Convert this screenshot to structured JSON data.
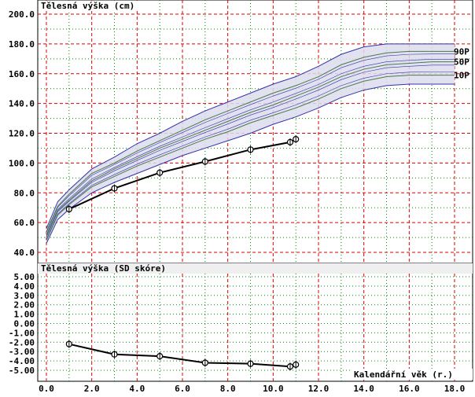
{
  "chart_data": [
    {
      "type": "line",
      "title": "Tělesná výška (cm)",
      "ylim": [
        40,
        200
      ],
      "xlim": [
        0,
        18
      ],
      "y_ticks": [
        "40.0",
        "60.0",
        "80.0",
        "100.0",
        "120.0",
        "140.0",
        "160.0",
        "180.0",
        "200.0"
      ],
      "x_ticks": [
        "0.0",
        "2.0",
        "4.0",
        "6.0",
        "8.0",
        "10.0",
        "12.0",
        "14.0",
        "16.0",
        "18.0"
      ],
      "grid": true,
      "percentile_labels": [
        "90P",
        "50P",
        "10P"
      ],
      "reference_band": {
        "x": [
          0,
          0.5,
          1,
          2,
          3,
          4,
          5,
          6,
          7,
          8,
          9,
          10,
          11,
          12,
          13,
          14,
          15,
          16,
          17,
          18
        ],
        "upper": [
          56,
          74,
          82,
          96,
          104,
          113,
          120,
          128,
          135,
          141,
          147,
          153,
          158,
          165,
          173,
          178,
          180,
          180,
          180,
          180
        ],
        "p90": [
          54,
          71,
          79,
          93,
          100,
          108,
          115,
          122,
          129,
          135,
          141,
          147,
          152,
          158,
          166,
          171,
          174,
          175,
          175,
          175
        ],
        "p50": [
          51,
          68,
          75,
          88,
          96,
          103,
          110,
          116,
          122,
          128,
          134,
          139,
          145,
          151,
          158,
          163,
          166,
          167,
          168,
          168
        ],
        "p10": [
          48,
          65,
          72,
          84,
          91,
          98,
          104,
          110,
          116,
          121,
          127,
          132,
          137,
          143,
          150,
          155,
          158,
          159,
          159,
          159
        ],
        "lower": [
          46,
          62,
          69,
          80,
          87,
          93,
          99,
          105,
          110,
          115,
          120,
          126,
          131,
          137,
          144,
          149,
          152,
          153,
          153,
          153
        ]
      },
      "series": [
        {
          "x": [
            1,
            3,
            5,
            7,
            9,
            10.75,
            11
          ],
          "values": [
            69,
            83,
            93.5,
            101,
            109,
            114,
            116
          ]
        }
      ]
    },
    {
      "type": "line",
      "title": "Tělesná výška (SD skóre)",
      "ylim": [
        -5,
        5
      ],
      "xlim": [
        0,
        18
      ],
      "y_ticks": [
        "5.00",
        "4.00",
        "3.00",
        "2.00",
        "1.00",
        "0.00",
        "-1.00",
        "-2.00",
        "-3.00",
        "-4.00",
        "-5.00"
      ],
      "xlabel": "Kalendářní věk (r.)",
      "grid": true,
      "series": [
        {
          "x": [
            1,
            3,
            5,
            7,
            9,
            10.75,
            11
          ],
          "values": [
            -2.2,
            -3.3,
            -3.5,
            -4.2,
            -4.3,
            -4.6,
            -4.4
          ]
        }
      ]
    }
  ],
  "colors": {
    "grid_red": "#dd0000",
    "grid_green": "#008800",
    "band_fill": "#dcdcec",
    "band_edge": "#3333aa",
    "band_line": "#4a7a4a",
    "series": "#000000",
    "sd_top_fill": "#efefef"
  }
}
